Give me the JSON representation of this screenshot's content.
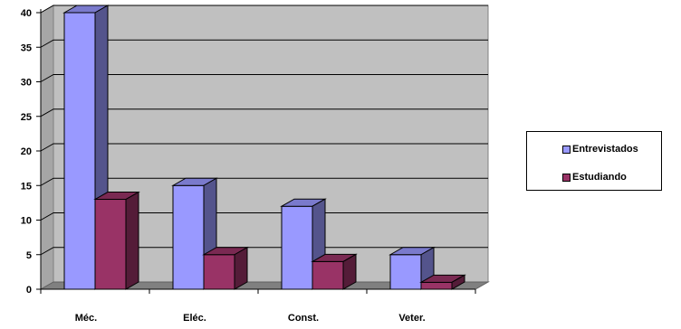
{
  "chart_data": {
    "type": "bar",
    "categories": [
      "Méc.",
      "Eléc.",
      "Const.",
      "Veter."
    ],
    "series": [
      {
        "name": "Entrevistados",
        "values": [
          40,
          15,
          12,
          5
        ],
        "color": "#9999ff"
      },
      {
        "name": "Estudiando",
        "values": [
          13,
          5,
          4,
          1
        ],
        "color": "#993366"
      }
    ],
    "ylim": [
      0,
      40
    ],
    "yticks": [
      0,
      5,
      10,
      15,
      20,
      25,
      30,
      35,
      40
    ],
    "grid": true,
    "plot_background": "#c0c0c0",
    "legend_position": "right"
  }
}
